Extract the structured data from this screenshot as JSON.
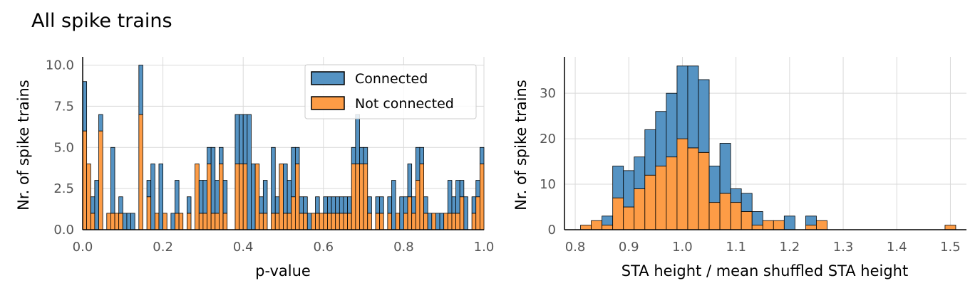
{
  "figure": {
    "title": "All spike trains"
  },
  "colors": {
    "connected": "#5593c3",
    "not_connected": "#fd9c46",
    "grid": "#d9d9d9",
    "tick": "#555555"
  },
  "chart_data": [
    {
      "type": "bar",
      "stacked": true,
      "xlabel": "p-value",
      "ylabel": "Nr. of spike trains",
      "xlim": [
        0,
        1
      ],
      "ylim": [
        0,
        10.5
      ],
      "xticks": [
        0,
        0.2,
        0.4,
        0.6,
        0.8,
        1
      ],
      "xtick_labels": [
        "0.0",
        "0.2",
        "0.4",
        "0.6",
        "0.8",
        "1.0"
      ],
      "yticks": [
        0,
        2.5,
        5,
        7.5,
        10
      ],
      "ytick_labels": [
        "0.0",
        "2.5",
        "5.0",
        "7.5",
        "10.0"
      ],
      "grid": true,
      "legend": {
        "position": "top-right",
        "entries": [
          "Connected",
          "Not connected"
        ]
      },
      "bin_width": 0.01,
      "bin_start": 0,
      "series": [
        {
          "name": "Not connected",
          "values": [
            6,
            4,
            1,
            0,
            6,
            0,
            1,
            1,
            1,
            1,
            0,
            0,
            0,
            0,
            7,
            0,
            2,
            0,
            1,
            0,
            1,
            0,
            0,
            1,
            1,
            0,
            1,
            0,
            4,
            1,
            1,
            4,
            1,
            1,
            4,
            1,
            0,
            0,
            4,
            4,
            4,
            0,
            0,
            4,
            1,
            1,
            0,
            1,
            1,
            4,
            1,
            1,
            2,
            4,
            1,
            1,
            0,
            1,
            1,
            1,
            1,
            1,
            1,
            1,
            1,
            1,
            1,
            4,
            4,
            4,
            4,
            1,
            0,
            1,
            1,
            0,
            1,
            0,
            1,
            0,
            1,
            2,
            1,
            3,
            4,
            1,
            0,
            1,
            0,
            0,
            1,
            1,
            1,
            1,
            2,
            0,
            0,
            1,
            2,
            4
          ]
        },
        {
          "name": "Connected",
          "values": [
            3,
            0,
            1,
            3,
            1,
            0,
            0,
            4,
            0,
            1,
            1,
            1,
            1,
            0,
            3,
            0,
            1,
            4,
            0,
            4,
            0,
            0,
            1,
            2,
            0,
            0,
            1,
            0,
            0,
            2,
            2,
            1,
            4,
            2,
            1,
            2,
            0,
            0,
            3,
            3,
            3,
            7,
            4,
            0,
            1,
            2,
            0,
            4,
            1,
            0,
            3,
            2,
            3,
            1,
            1,
            1,
            1,
            0,
            1,
            0,
            1,
            1,
            1,
            1,
            1,
            1,
            1,
            1,
            3,
            1,
            1,
            1,
            0,
            1,
            1,
            0,
            1,
            3,
            0,
            2,
            1,
            2,
            1,
            2,
            1,
            1,
            1,
            0,
            1,
            1,
            0,
            2,
            1,
            2,
            1,
            2,
            0,
            1,
            1,
            1
          ]
        }
      ]
    },
    {
      "type": "bar",
      "stacked": true,
      "xlabel": "STA height / mean shuffled STA height",
      "ylabel": "Nr. of spike trains",
      "xlim": [
        0.78,
        1.53
      ],
      "ylim": [
        0,
        38
      ],
      "xticks": [
        0.8,
        0.9,
        1.0,
        1.1,
        1.2,
        1.3,
        1.4,
        1.5
      ],
      "xtick_labels": [
        "0.8",
        "0.9",
        "1.0",
        "1.1",
        "1.2",
        "1.3",
        "1.4",
        "1.5"
      ],
      "yticks": [
        0,
        10,
        20,
        30
      ],
      "ytick_labels": [
        "0",
        "10",
        "20",
        "30"
      ],
      "grid": true,
      "bin_width": 0.02,
      "bin_start": 0.81,
      "series": [
        {
          "name": "Not connected",
          "values": [
            1,
            2,
            1,
            7,
            5,
            9,
            12,
            14,
            16,
            20,
            18,
            17,
            6,
            8,
            6,
            4,
            1,
            2,
            2,
            0,
            0,
            1,
            2,
            0,
            0,
            0,
            0,
            0,
            0,
            0,
            0,
            0,
            0,
            0,
            1
          ]
        },
        {
          "name": "Connected",
          "values": [
            0,
            0,
            2,
            7,
            8,
            7,
            10,
            12,
            14,
            16,
            18,
            16,
            8,
            11,
            3,
            4,
            3,
            0,
            0,
            3,
            0,
            2,
            0,
            0,
            0,
            0,
            0,
            0,
            0,
            0,
            0,
            0,
            0,
            0,
            0
          ]
        }
      ]
    }
  ]
}
